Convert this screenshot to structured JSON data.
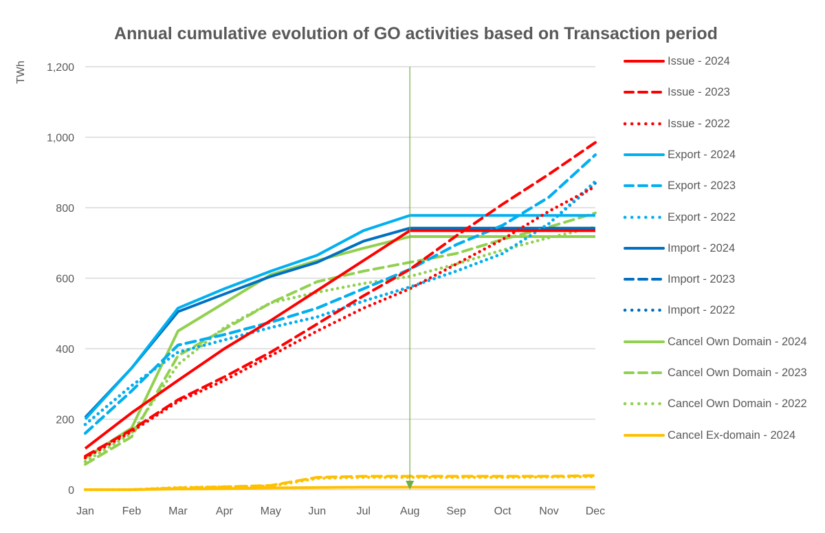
{
  "chart_data": {
    "type": "line",
    "title": "Annual cumulative evolution of GO activities based on Transaction period",
    "xlabel": "",
    "ylabel": "TWh",
    "categories": [
      "Jan",
      "Feb",
      "Mar",
      "Apr",
      "May",
      "Jun",
      "Jul",
      "Aug",
      "Sep",
      "Oct",
      "Nov",
      "Dec"
    ],
    "ylim": [
      0,
      1200
    ],
    "yticks": [
      0,
      200,
      400,
      600,
      800,
      1000,
      1200
    ],
    "ytick_labels": [
      "0",
      "200",
      "400",
      "600",
      "800",
      "1,000",
      "1,200"
    ],
    "grid": true,
    "legend": "right",
    "marker": {
      "category": "Aug",
      "color": "#70AD47"
    },
    "series": [
      {
        "name": "Issue - 2024",
        "color": "#FF0000",
        "style": "solid",
        "values": [
          117,
          218,
          310,
          400,
          480,
          565,
          650,
          735,
          735,
          735,
          735,
          735
        ]
      },
      {
        "name": "Issue - 2023",
        "color": "#FF0000",
        "style": "dashed",
        "values": [
          95,
          170,
          255,
          320,
          390,
          470,
          550,
          625,
          720,
          810,
          895,
          985
        ]
      },
      {
        "name": "Issue - 2022",
        "color": "#FF0000",
        "style": "dotted",
        "values": [
          90,
          165,
          250,
          310,
          380,
          450,
          515,
          570,
          640,
          710,
          790,
          860
        ]
      },
      {
        "name": "Export - 2024",
        "color": "#00B0F0",
        "style": "solid",
        "values": [
          200,
          345,
          515,
          570,
          620,
          665,
          735,
          778,
          778,
          778,
          778,
          778
        ]
      },
      {
        "name": "Export - 2023",
        "color": "#00B0F0",
        "style": "dashed",
        "values": [
          160,
          280,
          410,
          440,
          475,
          515,
          570,
          625,
          695,
          750,
          830,
          950
        ]
      },
      {
        "name": "Export - 2022",
        "color": "#00B0F0",
        "style": "dotted",
        "values": [
          185,
          295,
          390,
          425,
          460,
          490,
          535,
          575,
          620,
          670,
          755,
          875
        ]
      },
      {
        "name": "Import - 2024",
        "color": "#0070C0",
        "style": "solid",
        "values": [
          205,
          345,
          505,
          555,
          605,
          645,
          705,
          742,
          742,
          742,
          742,
          742
        ]
      },
      {
        "name": "Import - 2023",
        "color": "#0070C0",
        "style": "dashed",
        "values": [
          160,
          280,
          410,
          440,
          475,
          515,
          570,
          625,
          695,
          750,
          830,
          950
        ]
      },
      {
        "name": "Import - 2022",
        "color": "#0070C0",
        "style": "dotted",
        "values": [
          185,
          295,
          390,
          425,
          460,
          490,
          535,
          575,
          620,
          670,
          755,
          870
        ]
      },
      {
        "name": "Cancel Own Domain - 2024",
        "color": "#92D050",
        "style": "solid",
        "values": [
          90,
          175,
          450,
          530,
          610,
          650,
          685,
          718,
          718,
          718,
          718,
          718
        ]
      },
      {
        "name": "Cancel Own Domain - 2023",
        "color": "#92D050",
        "style": "dashed",
        "values": [
          72,
          150,
          380,
          455,
          530,
          590,
          620,
          645,
          670,
          710,
          745,
          785
        ]
      },
      {
        "name": "Cancel Own Domain - 2022",
        "color": "#92D050",
        "style": "dotted",
        "values": [
          80,
          160,
          355,
          460,
          530,
          560,
          585,
          605,
          640,
          680,
          715,
          745
        ]
      },
      {
        "name": "Cancel Ex-domain - 2024",
        "color": "#FFC000",
        "style": "solid",
        "values": [
          0,
          0,
          2,
          3,
          5,
          6,
          7,
          7,
          7,
          7,
          7,
          7
        ]
      },
      {
        "name": "",
        "color": "#FFC000",
        "style": "dashed",
        "values": [
          0,
          0,
          5,
          8,
          12,
          35,
          38,
          38,
          38,
          38,
          38,
          40
        ]
      },
      {
        "name": "",
        "color": "#FFC000",
        "style": "dotted",
        "values": [
          0,
          0,
          6,
          8,
          10,
          32,
          35,
          35,
          35,
          35,
          36,
          37
        ]
      }
    ]
  }
}
